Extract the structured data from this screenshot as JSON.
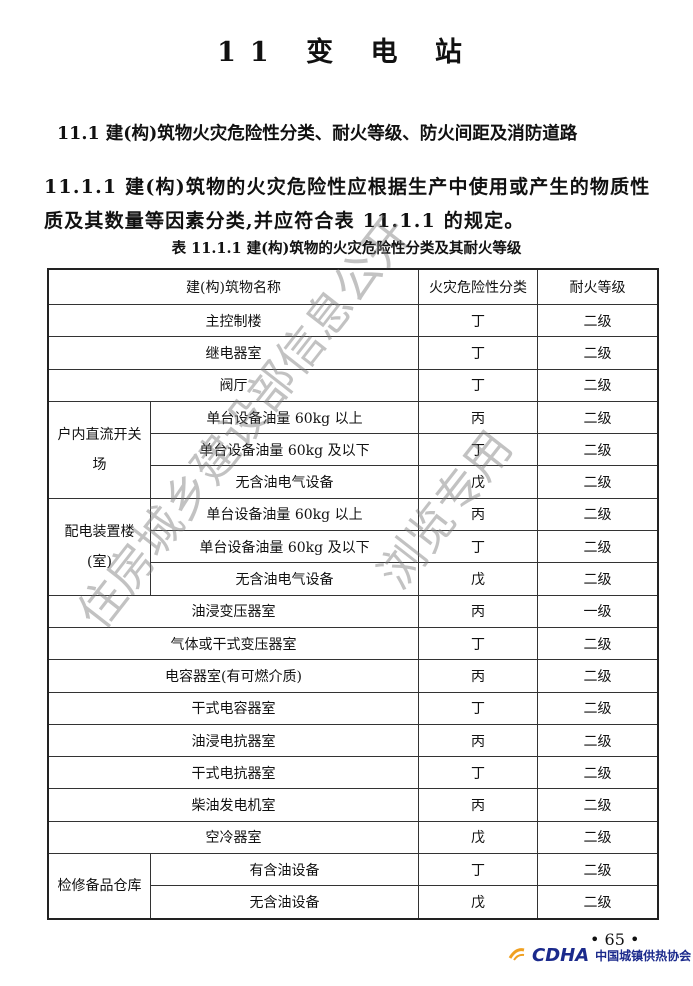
{
  "chapter_title": "11 变 电 站",
  "section_heading": "11.1 建(构)筑物火灾危险性分类、耐火等级、防火间距及消防道路",
  "clause": "11.1.1 建(构)筑物的火灾危险性应根据生产中使用或产生的物质性质及其数量等因素分类,并应符合表 11.1.1 的规定。",
  "table_caption": "表 11.1.1 建(构)筑物的火灾危险性分类及其耐火等级",
  "table": {
    "headers": [
      "建(构)筑物名称",
      "火灾危险性分类",
      "耐火等级"
    ],
    "rows": [
      {
        "group": "",
        "name": "主控制楼",
        "class": "丁",
        "grade": "二级"
      },
      {
        "group": "",
        "name": "继电器室",
        "class": "丁",
        "grade": "二级"
      },
      {
        "group": "",
        "name": "阀厅",
        "class": "丁",
        "grade": "二级"
      },
      {
        "group": "户内直流开关场",
        "name": "单台设备油量 60kg 以上",
        "class": "丙",
        "grade": "二级"
      },
      {
        "group": "户内直流开关场",
        "name": "单台设备油量 60kg 及以下",
        "class": "丁",
        "grade": "二级"
      },
      {
        "group": "户内直流开关场",
        "name": "无含油电气设备",
        "class": "戊",
        "grade": "二级"
      },
      {
        "group": "配电装置楼(室)",
        "name": "单台设备油量 60kg 以上",
        "class": "丙",
        "grade": "二级"
      },
      {
        "group": "配电装置楼(室)",
        "name": "单台设备油量 60kg 及以下",
        "class": "丁",
        "grade": "二级"
      },
      {
        "group": "配电装置楼(室)",
        "name": "无含油电气设备",
        "class": "戊",
        "grade": "二级"
      },
      {
        "group": "",
        "name": "油浸变压器室",
        "class": "丙",
        "grade": "一级"
      },
      {
        "group": "",
        "name": "气体或干式变压器室",
        "class": "丁",
        "grade": "二级"
      },
      {
        "group": "",
        "name": "电容器室(有可燃介质)",
        "class": "丙",
        "grade": "二级"
      },
      {
        "group": "",
        "name": "干式电容器室",
        "class": "丁",
        "grade": "二级"
      },
      {
        "group": "",
        "name": "油浸电抗器室",
        "class": "丙",
        "grade": "二级"
      },
      {
        "group": "",
        "name": "干式电抗器室",
        "class": "丁",
        "grade": "二级"
      },
      {
        "group": "",
        "name": "柴油发电机室",
        "class": "丙",
        "grade": "二级"
      },
      {
        "group": "",
        "name": "空冷器室",
        "class": "戊",
        "grade": "二级"
      },
      {
        "group": "检修备品仓库",
        "name": "有含油设备",
        "class": "丁",
        "grade": "二级"
      },
      {
        "group": "检修备品仓库",
        "name": "无含油设备",
        "class": "戊",
        "grade": "二级"
      }
    ]
  },
  "watermark": {
    "line1": "住房城乡建设部信息公开",
    "line2": "浏览专用"
  },
  "page_number": "• 65 •",
  "logo": {
    "mark": "CDHA",
    "org": "中国城镇供热协会",
    "colors": {
      "blue": "#1b2a8c",
      "orange": "#f0a020"
    }
  }
}
